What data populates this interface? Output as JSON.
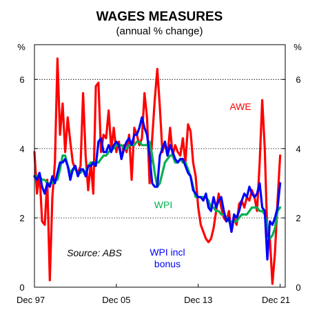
{
  "chart_data": {
    "type": "line",
    "title": "WAGES MEASURES",
    "subtitle": "(annual % change)",
    "ylabel_left": "%",
    "ylabel_right": "%",
    "ylim": [
      0,
      7
    ],
    "yticks": [
      0,
      2,
      4,
      6
    ],
    "xticks": [
      "Dec 97",
      "Dec 05",
      "Dec 13",
      "Dec 21"
    ],
    "xlim_years": [
      1997.75,
      2022.25
    ],
    "grid": "horizontal dotted",
    "source": "Source: ABS",
    "series": [
      {
        "name": "AWE",
        "color": "#ff0000",
        "label_lines": [
          "AWE"
        ],
        "points": [
          [
            1997.75,
            3.9
          ],
          [
            1998.0,
            2.7
          ],
          [
            1998.25,
            3.3
          ],
          [
            1998.5,
            1.9
          ],
          [
            1998.75,
            1.8
          ],
          [
            1999.0,
            3.1
          ],
          [
            1999.25,
            0.2
          ],
          [
            1999.5,
            2.6
          ],
          [
            1999.75,
            3.6
          ],
          [
            2000.0,
            6.6
          ],
          [
            2000.25,
            4.4
          ],
          [
            2000.5,
            5.3
          ],
          [
            2000.75,
            3.9
          ],
          [
            2001.0,
            4.9
          ],
          [
            2001.25,
            4.2
          ],
          [
            2001.5,
            3.6
          ],
          [
            2001.75,
            3.4
          ],
          [
            2002.0,
            3.3
          ],
          [
            2002.25,
            3.5
          ],
          [
            2002.5,
            5.6
          ],
          [
            2002.75,
            3.8
          ],
          [
            2003.0,
            2.8
          ],
          [
            2003.25,
            3.6
          ],
          [
            2003.5,
            2.7
          ],
          [
            2003.75,
            5.8
          ],
          [
            2004.0,
            5.9
          ],
          [
            2004.25,
            3.9
          ],
          [
            2004.5,
            4.4
          ],
          [
            2004.75,
            4.3
          ],
          [
            2005.0,
            5.1
          ],
          [
            2005.25,
            4.0
          ],
          [
            2005.5,
            4.6
          ],
          [
            2005.75,
            3.9
          ],
          [
            2006.0,
            4.2
          ],
          [
            2006.25,
            3.7
          ],
          [
            2006.5,
            4.1
          ],
          [
            2006.75,
            3.9
          ],
          [
            2007.0,
            4.4
          ],
          [
            2007.25,
            3.1
          ],
          [
            2007.5,
            4.6
          ],
          [
            2007.75,
            4.4
          ],
          [
            2008.0,
            4.1
          ],
          [
            2008.25,
            4.3
          ],
          [
            2008.5,
            5.6
          ],
          [
            2008.75,
            4.9
          ],
          [
            2009.0,
            3.0
          ],
          [
            2009.25,
            4.3
          ],
          [
            2009.5,
            5.4
          ],
          [
            2009.75,
            6.3
          ],
          [
            2010.0,
            5.2
          ],
          [
            2010.25,
            3.9
          ],
          [
            2010.5,
            4.2
          ],
          [
            2010.75,
            3.8
          ],
          [
            2011.0,
            4.6
          ],
          [
            2011.25,
            3.8
          ],
          [
            2011.5,
            4.1
          ],
          [
            2011.75,
            3.9
          ],
          [
            2012.0,
            3.8
          ],
          [
            2012.25,
            4.3
          ],
          [
            2012.5,
            3.6
          ],
          [
            2012.75,
            4.7
          ],
          [
            2013.0,
            4.5
          ],
          [
            2013.25,
            3.6
          ],
          [
            2013.5,
            3.2
          ],
          [
            2013.75,
            2.3
          ],
          [
            2014.0,
            1.8
          ],
          [
            2014.25,
            1.6
          ],
          [
            2014.5,
            1.4
          ],
          [
            2014.75,
            1.3
          ],
          [
            2015.0,
            1.4
          ],
          [
            2015.25,
            1.7
          ],
          [
            2015.5,
            2.2
          ],
          [
            2015.75,
            2.7
          ],
          [
            2016.0,
            2.3
          ],
          [
            2016.25,
            2.0
          ],
          [
            2016.5,
            1.9
          ],
          [
            2016.75,
            2.2
          ],
          [
            2017.0,
            1.6
          ],
          [
            2017.25,
            2.0
          ],
          [
            2017.5,
            1.8
          ],
          [
            2017.75,
            2.4
          ],
          [
            2018.0,
            2.5
          ],
          [
            2018.25,
            2.3
          ],
          [
            2018.5,
            2.6
          ],
          [
            2018.75,
            2.5
          ],
          [
            2019.0,
            2.8
          ],
          [
            2019.25,
            2.6
          ],
          [
            2019.5,
            2.2
          ],
          [
            2019.75,
            3.6
          ],
          [
            2020.0,
            5.4
          ],
          [
            2020.25,
            4.0
          ],
          [
            2020.5,
            1.5
          ],
          [
            2020.75,
            1.4
          ],
          [
            2021.0,
            0.1
          ],
          [
            2021.25,
            1.0
          ],
          [
            2021.5,
            2.5
          ],
          [
            2021.75,
            3.8
          ]
        ]
      },
      {
        "name": "WPI",
        "color": "#00b050",
        "label_lines": [
          "WPI"
        ],
        "points": [
          [
            1997.75,
            3.2
          ],
          [
            1998.0,
            3.2
          ],
          [
            1998.25,
            3.2
          ],
          [
            1998.5,
            3.1
          ],
          [
            1998.75,
            3.1
          ],
          [
            1999.0,
            3.0
          ],
          [
            1999.25,
            3.0
          ],
          [
            1999.5,
            3.0
          ],
          [
            1999.75,
            3.1
          ],
          [
            2000.0,
            3.1
          ],
          [
            2000.25,
            3.4
          ],
          [
            2000.5,
            3.8
          ],
          [
            2000.75,
            3.8
          ],
          [
            2001.0,
            3.5
          ],
          [
            2001.25,
            3.3
          ],
          [
            2001.5,
            3.4
          ],
          [
            2001.75,
            3.4
          ],
          [
            2002.0,
            3.3
          ],
          [
            2002.25,
            3.3
          ],
          [
            2002.5,
            3.4
          ],
          [
            2002.75,
            3.3
          ],
          [
            2003.0,
            3.5
          ],
          [
            2003.25,
            3.6
          ],
          [
            2003.5,
            3.6
          ],
          [
            2003.75,
            3.6
          ],
          [
            2004.0,
            3.6
          ],
          [
            2004.25,
            3.7
          ],
          [
            2004.5,
            3.8
          ],
          [
            2004.75,
            3.8
          ],
          [
            2005.0,
            3.9
          ],
          [
            2005.25,
            4.0
          ],
          [
            2005.5,
            4.0
          ],
          [
            2005.75,
            4.1
          ],
          [
            2006.0,
            4.1
          ],
          [
            2006.25,
            4.1
          ],
          [
            2006.5,
            4.0
          ],
          [
            2006.75,
            4.0
          ],
          [
            2007.0,
            4.1
          ],
          [
            2007.25,
            4.1
          ],
          [
            2007.5,
            4.1
          ],
          [
            2007.75,
            4.2
          ],
          [
            2008.0,
            4.2
          ],
          [
            2008.25,
            4.1
          ],
          [
            2008.5,
            4.1
          ],
          [
            2008.75,
            4.1
          ],
          [
            2009.0,
            4.2
          ],
          [
            2009.25,
            3.8
          ],
          [
            2009.5,
            3.3
          ],
          [
            2009.75,
            2.9
          ],
          [
            2010.0,
            3.0
          ],
          [
            2010.25,
            3.3
          ],
          [
            2010.5,
            3.6
          ],
          [
            2010.75,
            3.7
          ],
          [
            2011.0,
            3.8
          ],
          [
            2011.25,
            3.8
          ],
          [
            2011.5,
            3.6
          ],
          [
            2011.75,
            3.6
          ],
          [
            2012.0,
            3.7
          ],
          [
            2012.25,
            3.6
          ],
          [
            2012.5,
            3.6
          ],
          [
            2012.75,
            3.4
          ],
          [
            2013.0,
            3.2
          ],
          [
            2013.25,
            2.9
          ],
          [
            2013.5,
            2.6
          ],
          [
            2013.75,
            2.6
          ],
          [
            2014.0,
            2.6
          ],
          [
            2014.25,
            2.6
          ],
          [
            2014.5,
            2.6
          ],
          [
            2014.75,
            2.5
          ],
          [
            2015.0,
            2.3
          ],
          [
            2015.25,
            2.3
          ],
          [
            2015.5,
            2.2
          ],
          [
            2015.75,
            2.2
          ],
          [
            2016.0,
            2.1
          ],
          [
            2016.25,
            2.1
          ],
          [
            2016.5,
            2.0
          ],
          [
            2016.75,
            1.9
          ],
          [
            2017.0,
            1.9
          ],
          [
            2017.25,
            1.9
          ],
          [
            2017.5,
            1.9
          ],
          [
            2017.75,
            2.0
          ],
          [
            2018.0,
            2.1
          ],
          [
            2018.25,
            2.1
          ],
          [
            2018.5,
            2.1
          ],
          [
            2018.75,
            2.2
          ],
          [
            2019.0,
            2.3
          ],
          [
            2019.25,
            2.3
          ],
          [
            2019.5,
            2.3
          ],
          [
            2019.75,
            2.2
          ],
          [
            2020.0,
            2.2
          ],
          [
            2020.25,
            2.1
          ],
          [
            2020.5,
            1.8
          ],
          [
            2020.75,
            1.4
          ],
          [
            2021.0,
            1.5
          ],
          [
            2021.25,
            1.7
          ],
          [
            2021.5,
            2.2
          ],
          [
            2021.75,
            2.3
          ]
        ]
      },
      {
        "name": "WPI incl bonus",
        "color": "#0000ff",
        "label_lines": [
          "WPI incl",
          "bonus"
        ],
        "points": [
          [
            1997.75,
            3.2
          ],
          [
            1998.0,
            3.1
          ],
          [
            1998.25,
            3.3
          ],
          [
            1998.5,
            2.9
          ],
          [
            1998.75,
            2.7
          ],
          [
            1999.0,
            3.0
          ],
          [
            1999.25,
            2.9
          ],
          [
            1999.5,
            3.2
          ],
          [
            1999.75,
            3.0
          ],
          [
            2000.0,
            3.3
          ],
          [
            2000.25,
            3.6
          ],
          [
            2000.5,
            3.6
          ],
          [
            2000.75,
            3.7
          ],
          [
            2001.0,
            3.5
          ],
          [
            2001.25,
            3.1
          ],
          [
            2001.5,
            3.4
          ],
          [
            2001.75,
            3.5
          ],
          [
            2002.0,
            3.2
          ],
          [
            2002.25,
            3.4
          ],
          [
            2002.5,
            3.4
          ],
          [
            2002.75,
            3.2
          ],
          [
            2003.0,
            3.5
          ],
          [
            2003.25,
            3.5
          ],
          [
            2003.5,
            3.6
          ],
          [
            2003.75,
            3.5
          ],
          [
            2004.0,
            4.2
          ],
          [
            2004.25,
            4.3
          ],
          [
            2004.5,
            3.9
          ],
          [
            2004.75,
            3.9
          ],
          [
            2005.0,
            4.1
          ],
          [
            2005.25,
            3.9
          ],
          [
            2005.5,
            4.1
          ],
          [
            2005.75,
            4.2
          ],
          [
            2006.0,
            4.1
          ],
          [
            2006.25,
            3.7
          ],
          [
            2006.5,
            4.0
          ],
          [
            2006.75,
            4.2
          ],
          [
            2007.0,
            4.3
          ],
          [
            2007.25,
            4.1
          ],
          [
            2007.5,
            4.4
          ],
          [
            2007.75,
            4.4
          ],
          [
            2008.0,
            4.6
          ],
          [
            2008.25,
            4.9
          ],
          [
            2008.5,
            4.6
          ],
          [
            2008.75,
            4.4
          ],
          [
            2009.0,
            3.8
          ],
          [
            2009.25,
            3.0
          ],
          [
            2009.5,
            2.9
          ],
          [
            2009.75,
            2.9
          ],
          [
            2010.0,
            3.8
          ],
          [
            2010.25,
            4.0
          ],
          [
            2010.5,
            4.2
          ],
          [
            2010.75,
            3.8
          ],
          [
            2011.0,
            4.1
          ],
          [
            2011.25,
            3.9
          ],
          [
            2011.5,
            3.7
          ],
          [
            2011.75,
            3.6
          ],
          [
            2012.0,
            3.7
          ],
          [
            2012.25,
            3.7
          ],
          [
            2012.5,
            3.5
          ],
          [
            2012.75,
            3.3
          ],
          [
            2013.0,
            3.2
          ],
          [
            2013.25,
            2.8
          ],
          [
            2013.5,
            2.7
          ],
          [
            2013.75,
            2.6
          ],
          [
            2014.0,
            2.6
          ],
          [
            2014.25,
            2.5
          ],
          [
            2014.5,
            2.7
          ],
          [
            2014.75,
            2.3
          ],
          [
            2015.0,
            2.2
          ],
          [
            2015.25,
            2.6
          ],
          [
            2015.5,
            2.3
          ],
          [
            2015.75,
            2.5
          ],
          [
            2016.0,
            2.6
          ],
          [
            2016.25,
            2.2
          ],
          [
            2016.5,
            1.9
          ],
          [
            2016.75,
            2.0
          ],
          [
            2017.0,
            1.6
          ],
          [
            2017.25,
            2.1
          ],
          [
            2017.5,
            2.0
          ],
          [
            2017.75,
            2.2
          ],
          [
            2018.0,
            2.5
          ],
          [
            2018.25,
            2.7
          ],
          [
            2018.5,
            2.6
          ],
          [
            2018.75,
            2.9
          ],
          [
            2019.0,
            2.7
          ],
          [
            2019.25,
            2.6
          ],
          [
            2019.5,
            2.7
          ],
          [
            2019.75,
            3.0
          ],
          [
            2020.0,
            2.3
          ],
          [
            2020.25,
            2.2
          ],
          [
            2020.5,
            0.8
          ],
          [
            2020.75,
            1.9
          ],
          [
            2021.0,
            1.8
          ],
          [
            2021.25,
            2.0
          ],
          [
            2021.5,
            2.3
          ],
          [
            2021.75,
            3.0
          ]
        ]
      }
    ]
  }
}
